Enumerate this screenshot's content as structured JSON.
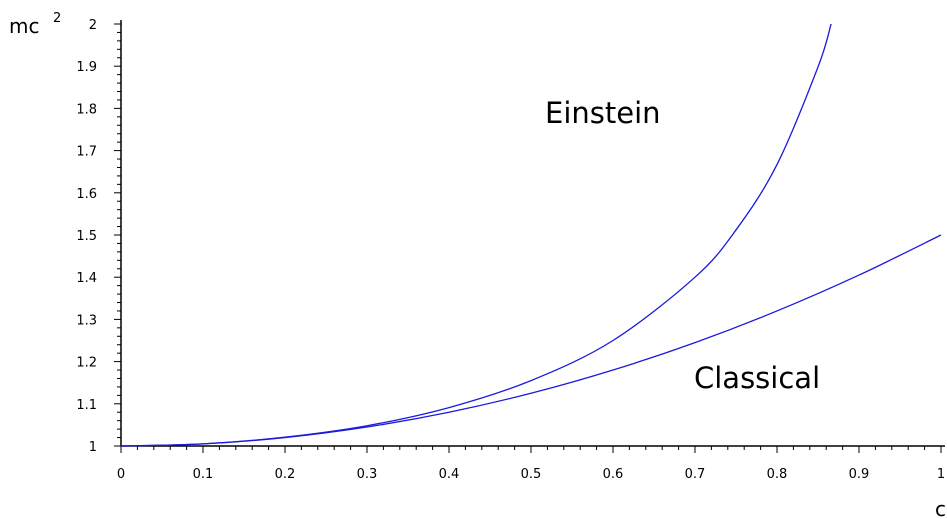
{
  "chart_data": {
    "type": "line",
    "title": "",
    "xlabel": "c",
    "ylabel": "mc",
    "ylabel_superscript": "2",
    "xlim": [
      0,
      1
    ],
    "ylim": [
      1,
      2
    ],
    "grid": false,
    "x_ticks": [
      0,
      0.1,
      0.2,
      0.3,
      0.4,
      0.5,
      0.6,
      0.7,
      0.8,
      0.9,
      1
    ],
    "x_tick_labels": [
      "0",
      "0.1",
      "0.2",
      "0.3",
      "0.4",
      "0.5",
      "0.6",
      "0.7",
      "0.8",
      "0.9",
      "1"
    ],
    "y_ticks": [
      1,
      1.1,
      1.2,
      1.3,
      1.4,
      1.5,
      1.6,
      1.7,
      1.8,
      1.9,
      2
    ],
    "y_tick_labels": [
      "1",
      "1.1",
      "1.2",
      "1.3",
      "1.4",
      "1.5",
      "1.6",
      "1.7",
      "1.8",
      "1.9",
      "2"
    ],
    "line_color": "#1a1adc",
    "annotations": [
      {
        "text": "Einstein"
      },
      {
        "text": "Classical"
      }
    ],
    "series": [
      {
        "x": [
          0,
          0.1,
          0.2,
          0.3,
          0.4,
          0.5,
          0.6,
          0.7,
          0.75,
          0.8,
          0.85,
          0.866
        ],
        "values": [
          1,
          1.005,
          1.021,
          1.048,
          1.091,
          1.155,
          1.25,
          1.4,
          1.512,
          1.667,
          1.898,
          2.0
        ]
      },
      {
        "x": [
          0,
          0.1,
          0.2,
          0.3,
          0.4,
          0.5,
          0.6,
          0.7,
          0.8,
          0.9,
          1
        ],
        "values": [
          1,
          1.005,
          1.02,
          1.045,
          1.08,
          1.125,
          1.18,
          1.245,
          1.32,
          1.405,
          1.5
        ]
      }
    ]
  }
}
